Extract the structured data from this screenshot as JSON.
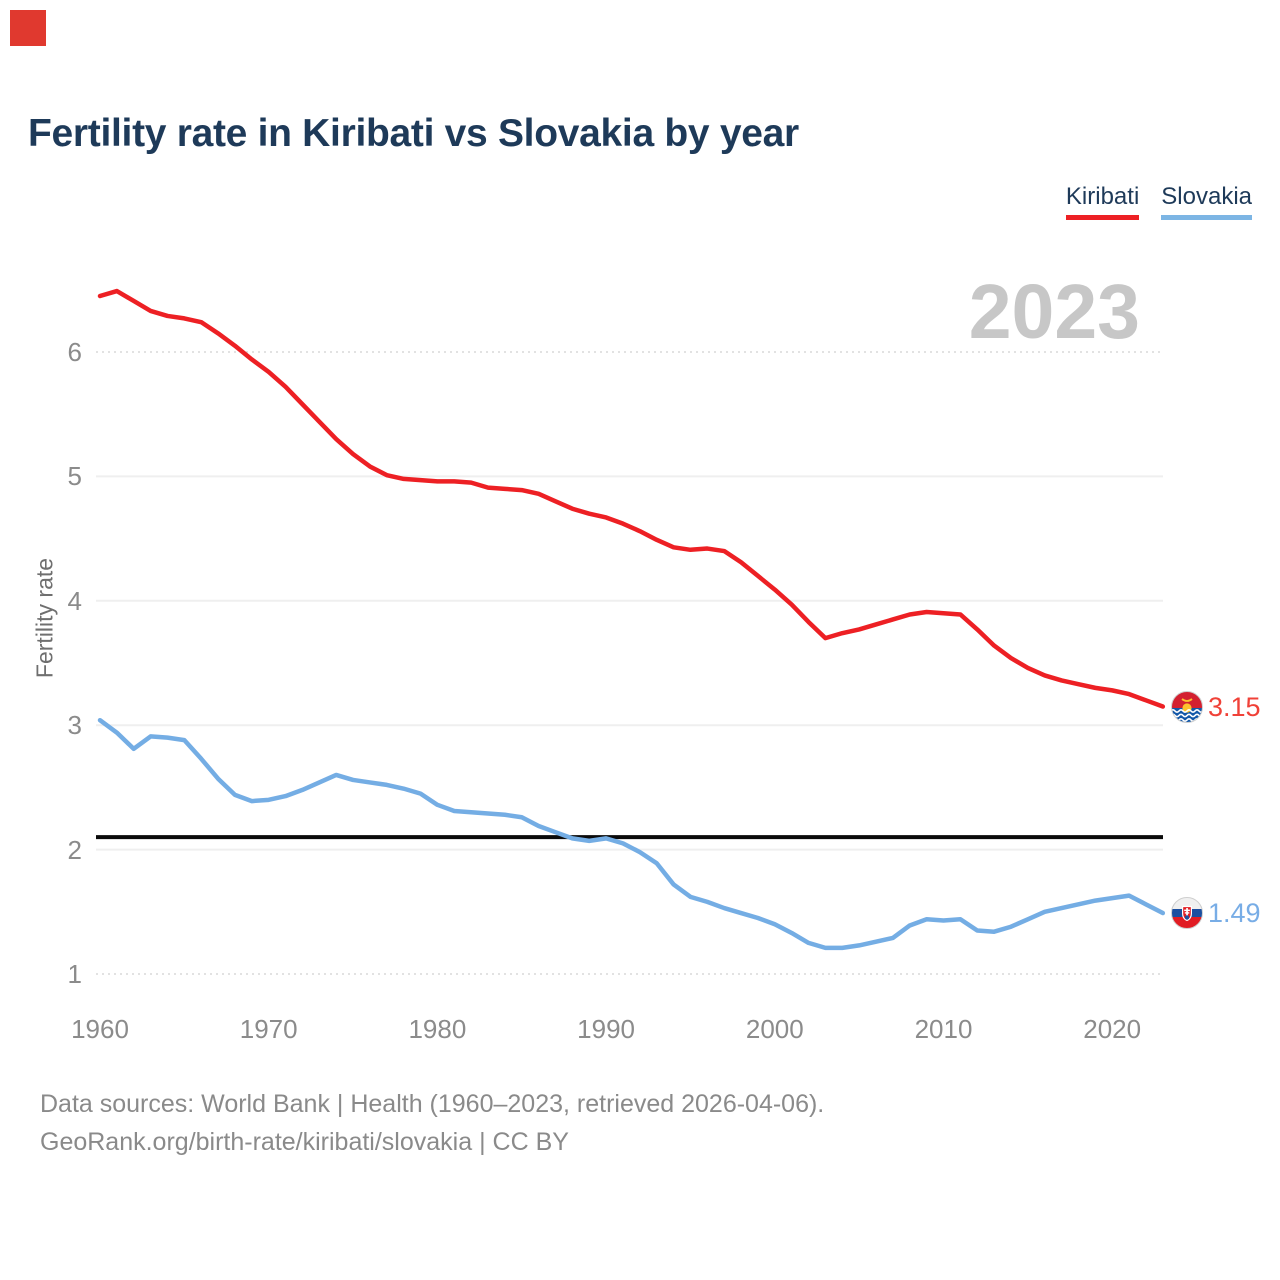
{
  "title": "Fertility rate in Kiribati vs Slovakia by year",
  "watermark": "2023",
  "legend": {
    "items": [
      {
        "label": "Kiribati",
        "color": "#ed2024"
      },
      {
        "label": "Slovakia",
        "color": "#7cb5e4"
      }
    ]
  },
  "colors": {
    "accent_red": "#ed2024",
    "accent_blue": "#74ade4",
    "click_marker": "#e0392f",
    "title_text": "#1e3a59",
    "axis_text": "#8b8b8b",
    "watermark": "#c7c7c7",
    "reference_line": "#0a0a0a"
  },
  "chart_data": {
    "type": "line",
    "title": "Fertility rate in Kiribati vs Slovakia by year",
    "xlabel": "",
    "ylabel": "Fertility rate",
    "xlim": [
      1960,
      2023
    ],
    "ylim": [
      1,
      6.6
    ],
    "grid": "horizontal",
    "legend_position": "top-right",
    "yticks": [
      1,
      2,
      3,
      4,
      5,
      6
    ],
    "xticks": [
      1960,
      1970,
      1980,
      1990,
      2000,
      2010,
      2020
    ],
    "reference_line": {
      "value": 2.1
    },
    "x": [
      1960,
      1961,
      1962,
      1963,
      1964,
      1965,
      1966,
      1967,
      1968,
      1969,
      1970,
      1971,
      1972,
      1973,
      1974,
      1975,
      1976,
      1977,
      1978,
      1979,
      1980,
      1981,
      1982,
      1983,
      1984,
      1985,
      1986,
      1987,
      1988,
      1989,
      1990,
      1991,
      1992,
      1993,
      1994,
      1995,
      1996,
      1997,
      1998,
      1999,
      2000,
      2001,
      2002,
      2003,
      2004,
      2005,
      2006,
      2007,
      2008,
      2009,
      2010,
      2011,
      2012,
      2013,
      2014,
      2015,
      2016,
      2017,
      2018,
      2019,
      2020,
      2021,
      2022,
      2023
    ],
    "series": [
      {
        "name": "Kiribati",
        "color": "#ed2024",
        "end_label": "3.15",
        "values": [
          6.45,
          6.49,
          6.41,
          6.33,
          6.29,
          6.27,
          6.24,
          6.15,
          6.05,
          5.94,
          5.84,
          5.72,
          5.58,
          5.44,
          5.3,
          5.18,
          5.08,
          5.01,
          4.98,
          4.97,
          4.96,
          4.96,
          4.95,
          4.91,
          4.9,
          4.89,
          4.86,
          4.8,
          4.74,
          4.7,
          4.67,
          4.62,
          4.56,
          4.49,
          4.43,
          4.41,
          4.42,
          4.4,
          4.31,
          4.2,
          4.09,
          3.97,
          3.83,
          3.7,
          3.74,
          3.77,
          3.81,
          3.85,
          3.89,
          3.91,
          3.9,
          3.89,
          3.77,
          3.64,
          3.54,
          3.46,
          3.4,
          3.36,
          3.33,
          3.3,
          3.28,
          3.25,
          3.2,
          3.15
        ]
      },
      {
        "name": "Slovakia",
        "color": "#74ade4",
        "end_label": "1.49",
        "values": [
          3.04,
          2.94,
          2.81,
          2.91,
          2.9,
          2.88,
          2.73,
          2.57,
          2.44,
          2.39,
          2.4,
          2.43,
          2.48,
          2.54,
          2.6,
          2.56,
          2.54,
          2.52,
          2.49,
          2.45,
          2.36,
          2.31,
          2.3,
          2.29,
          2.28,
          2.26,
          2.19,
          2.14,
          2.09,
          2.07,
          2.09,
          2.05,
          1.98,
          1.89,
          1.72,
          1.62,
          1.58,
          1.53,
          1.49,
          1.45,
          1.4,
          1.33,
          1.25,
          1.21,
          1.21,
          1.23,
          1.26,
          1.29,
          1.39,
          1.44,
          1.43,
          1.44,
          1.35,
          1.34,
          1.38,
          1.44,
          1.5,
          1.53,
          1.56,
          1.59,
          1.61,
          1.63,
          1.56,
          1.49
        ]
      }
    ]
  },
  "footer": {
    "line1": "Data sources: World Bank | Health (1960–2023, retrieved 2026-04-06).",
    "line2": "GeoRank.org/birth-rate/kiribati/slovakia | CC BY"
  }
}
